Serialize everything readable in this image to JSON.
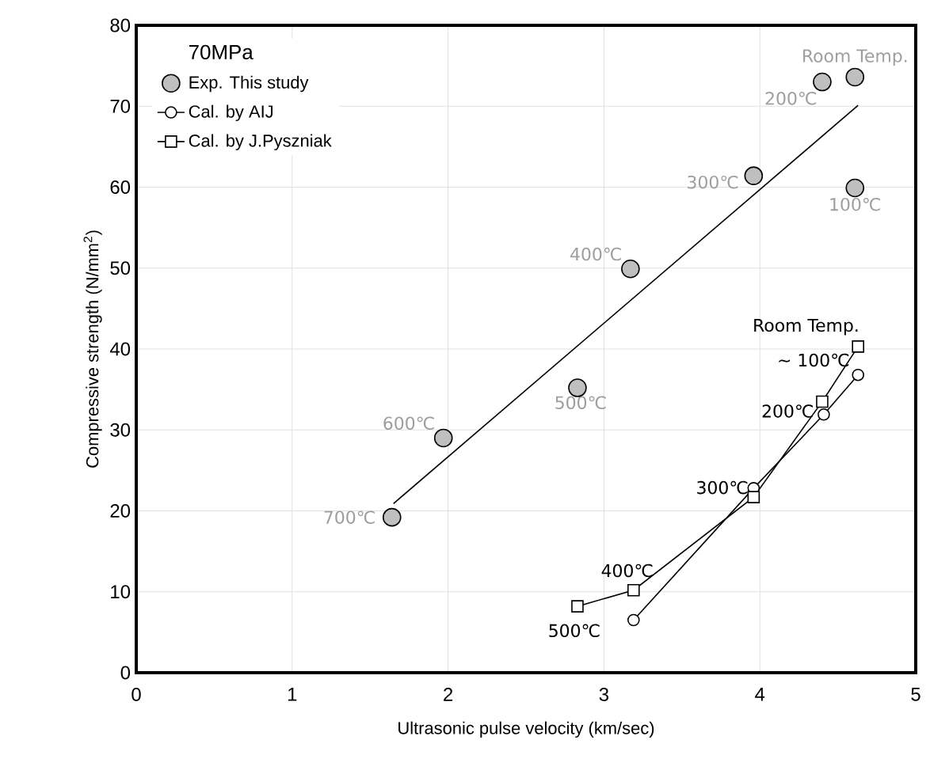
{
  "chart_data": {
    "type": "scatter",
    "xlabel": "Ultrasonic pulse velocity (km/sec)",
    "ylabel": "Compressive strength (N/mm$^{2}$)",
    "legend_title": "70MPa",
    "legend": "top left",
    "grid": true,
    "xlim": [
      0,
      5
    ],
    "ylim": [
      0,
      80
    ],
    "xticks": [
      0,
      1,
      2,
      3,
      4,
      5
    ],
    "yticks": [
      0,
      10,
      20,
      30,
      40,
      50,
      60,
      70,
      80
    ],
    "series": [
      {
        "name": "Exp. This study",
        "marker": "circle",
        "color": "#bfbfbf",
        "x": [
          1.64,
          1.97,
          2.83,
          3.17,
          3.96,
          4.4,
          4.61,
          4.61
        ],
        "values": [
          19.2,
          29,
          35.2,
          49.9,
          61.4,
          73,
          73.6,
          59.9
        ]
      },
      {
        "type": "line",
        "marker": "none",
        "color": "#000000",
        "x": [
          1.65,
          4.63
        ],
        "values": [
          20.9,
          70.1
        ]
      },
      {
        "name": "Cal. by AIJ",
        "type": "line",
        "marker": "circle",
        "color": "#000000",
        "x": [
          3.19,
          3.96,
          4.41,
          4.63
        ],
        "values": [
          6.5,
          22.8,
          31.9,
          36.8
        ]
      },
      {
        "name": "Cal. by J.Pyszniak",
        "type": "line",
        "marker": "square",
        "color": "#000000",
        "x": [
          2.83,
          3.19,
          3.96,
          4.4,
          4.63
        ],
        "values": [
          8.2,
          10.2,
          21.7,
          33.5,
          40.3
        ]
      }
    ],
    "annotations": [
      {
        "text": "Room Temp.",
        "x": 4.61,
        "y": 73.6
      },
      {
        "text": "200℃",
        "x": 4.4,
        "y": 73
      },
      {
        "text": "300℃",
        "x": 3.96,
        "y": 61.4
      },
      {
        "text": "100℃",
        "x": 4.61,
        "y": 59.9
      },
      {
        "text": "400℃",
        "x": 3.17,
        "y": 49.9
      },
      {
        "text": "500℃",
        "x": 2.83,
        "y": 35.2
      },
      {
        "text": "600℃",
        "x": 1.97,
        "y": 29
      },
      {
        "text": "700℃",
        "x": 1.64,
        "y": 19.2
      },
      {
        "text": "Room Temp.",
        "x": 4.63,
        "y": 40.3
      },
      {
        "text": "~ 100℃",
        "x": 4.63,
        "y": 36.8
      },
      {
        "text": "200℃",
        "x": 4.4,
        "y": 33.5
      },
      {
        "text": "300℃",
        "x": 3.96,
        "y": 21.7
      },
      {
        "text": "400℃",
        "x": 3.19,
        "y": 10.2
      },
      {
        "text": "500℃",
        "x": 2.83,
        "y": 8.2
      }
    ]
  }
}
